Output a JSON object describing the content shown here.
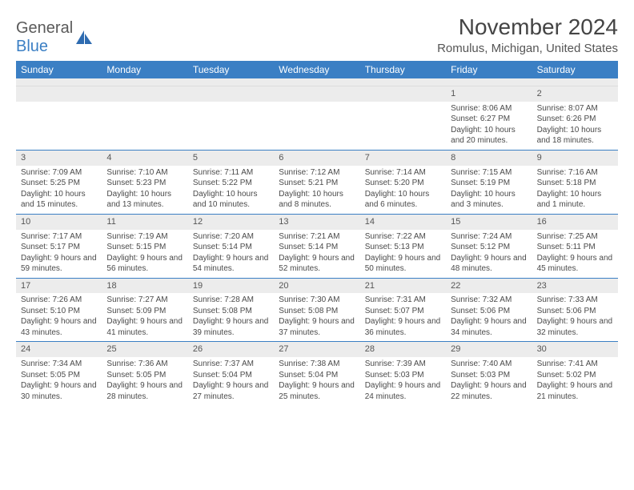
{
  "logo": {
    "text1": "General",
    "text2": "Blue"
  },
  "title": "November 2024",
  "location": "Romulus, Michigan, United States",
  "colors": {
    "header_bg": "#3b7fc4",
    "header_text": "#ffffff",
    "daynum_bg": "#ececec",
    "week_divider": "#3b7fc4",
    "body_text": "#4a4a4a"
  },
  "day_names": [
    "Sunday",
    "Monday",
    "Tuesday",
    "Wednesday",
    "Thursday",
    "Friday",
    "Saturday"
  ],
  "weeks": [
    [
      null,
      null,
      null,
      null,
      null,
      {
        "n": "1",
        "sr": "Sunrise: 8:06 AM",
        "ss": "Sunset: 6:27 PM",
        "dl": "Daylight: 10 hours and 20 minutes."
      },
      {
        "n": "2",
        "sr": "Sunrise: 8:07 AM",
        "ss": "Sunset: 6:26 PM",
        "dl": "Daylight: 10 hours and 18 minutes."
      }
    ],
    [
      {
        "n": "3",
        "sr": "Sunrise: 7:09 AM",
        "ss": "Sunset: 5:25 PM",
        "dl": "Daylight: 10 hours and 15 minutes."
      },
      {
        "n": "4",
        "sr": "Sunrise: 7:10 AM",
        "ss": "Sunset: 5:23 PM",
        "dl": "Daylight: 10 hours and 13 minutes."
      },
      {
        "n": "5",
        "sr": "Sunrise: 7:11 AM",
        "ss": "Sunset: 5:22 PM",
        "dl": "Daylight: 10 hours and 10 minutes."
      },
      {
        "n": "6",
        "sr": "Sunrise: 7:12 AM",
        "ss": "Sunset: 5:21 PM",
        "dl": "Daylight: 10 hours and 8 minutes."
      },
      {
        "n": "7",
        "sr": "Sunrise: 7:14 AM",
        "ss": "Sunset: 5:20 PM",
        "dl": "Daylight: 10 hours and 6 minutes."
      },
      {
        "n": "8",
        "sr": "Sunrise: 7:15 AM",
        "ss": "Sunset: 5:19 PM",
        "dl": "Daylight: 10 hours and 3 minutes."
      },
      {
        "n": "9",
        "sr": "Sunrise: 7:16 AM",
        "ss": "Sunset: 5:18 PM",
        "dl": "Daylight: 10 hours and 1 minute."
      }
    ],
    [
      {
        "n": "10",
        "sr": "Sunrise: 7:17 AM",
        "ss": "Sunset: 5:17 PM",
        "dl": "Daylight: 9 hours and 59 minutes."
      },
      {
        "n": "11",
        "sr": "Sunrise: 7:19 AM",
        "ss": "Sunset: 5:15 PM",
        "dl": "Daylight: 9 hours and 56 minutes."
      },
      {
        "n": "12",
        "sr": "Sunrise: 7:20 AM",
        "ss": "Sunset: 5:14 PM",
        "dl": "Daylight: 9 hours and 54 minutes."
      },
      {
        "n": "13",
        "sr": "Sunrise: 7:21 AM",
        "ss": "Sunset: 5:14 PM",
        "dl": "Daylight: 9 hours and 52 minutes."
      },
      {
        "n": "14",
        "sr": "Sunrise: 7:22 AM",
        "ss": "Sunset: 5:13 PM",
        "dl": "Daylight: 9 hours and 50 minutes."
      },
      {
        "n": "15",
        "sr": "Sunrise: 7:24 AM",
        "ss": "Sunset: 5:12 PM",
        "dl": "Daylight: 9 hours and 48 minutes."
      },
      {
        "n": "16",
        "sr": "Sunrise: 7:25 AM",
        "ss": "Sunset: 5:11 PM",
        "dl": "Daylight: 9 hours and 45 minutes."
      }
    ],
    [
      {
        "n": "17",
        "sr": "Sunrise: 7:26 AM",
        "ss": "Sunset: 5:10 PM",
        "dl": "Daylight: 9 hours and 43 minutes."
      },
      {
        "n": "18",
        "sr": "Sunrise: 7:27 AM",
        "ss": "Sunset: 5:09 PM",
        "dl": "Daylight: 9 hours and 41 minutes."
      },
      {
        "n": "19",
        "sr": "Sunrise: 7:28 AM",
        "ss": "Sunset: 5:08 PM",
        "dl": "Daylight: 9 hours and 39 minutes."
      },
      {
        "n": "20",
        "sr": "Sunrise: 7:30 AM",
        "ss": "Sunset: 5:08 PM",
        "dl": "Daylight: 9 hours and 37 minutes."
      },
      {
        "n": "21",
        "sr": "Sunrise: 7:31 AM",
        "ss": "Sunset: 5:07 PM",
        "dl": "Daylight: 9 hours and 36 minutes."
      },
      {
        "n": "22",
        "sr": "Sunrise: 7:32 AM",
        "ss": "Sunset: 5:06 PM",
        "dl": "Daylight: 9 hours and 34 minutes."
      },
      {
        "n": "23",
        "sr": "Sunrise: 7:33 AM",
        "ss": "Sunset: 5:06 PM",
        "dl": "Daylight: 9 hours and 32 minutes."
      }
    ],
    [
      {
        "n": "24",
        "sr": "Sunrise: 7:34 AM",
        "ss": "Sunset: 5:05 PM",
        "dl": "Daylight: 9 hours and 30 minutes."
      },
      {
        "n": "25",
        "sr": "Sunrise: 7:36 AM",
        "ss": "Sunset: 5:05 PM",
        "dl": "Daylight: 9 hours and 28 minutes."
      },
      {
        "n": "26",
        "sr": "Sunrise: 7:37 AM",
        "ss": "Sunset: 5:04 PM",
        "dl": "Daylight: 9 hours and 27 minutes."
      },
      {
        "n": "27",
        "sr": "Sunrise: 7:38 AM",
        "ss": "Sunset: 5:04 PM",
        "dl": "Daylight: 9 hours and 25 minutes."
      },
      {
        "n": "28",
        "sr": "Sunrise: 7:39 AM",
        "ss": "Sunset: 5:03 PM",
        "dl": "Daylight: 9 hours and 24 minutes."
      },
      {
        "n": "29",
        "sr": "Sunrise: 7:40 AM",
        "ss": "Sunset: 5:03 PM",
        "dl": "Daylight: 9 hours and 22 minutes."
      },
      {
        "n": "30",
        "sr": "Sunrise: 7:41 AM",
        "ss": "Sunset: 5:02 PM",
        "dl": "Daylight: 9 hours and 21 minutes."
      }
    ]
  ]
}
